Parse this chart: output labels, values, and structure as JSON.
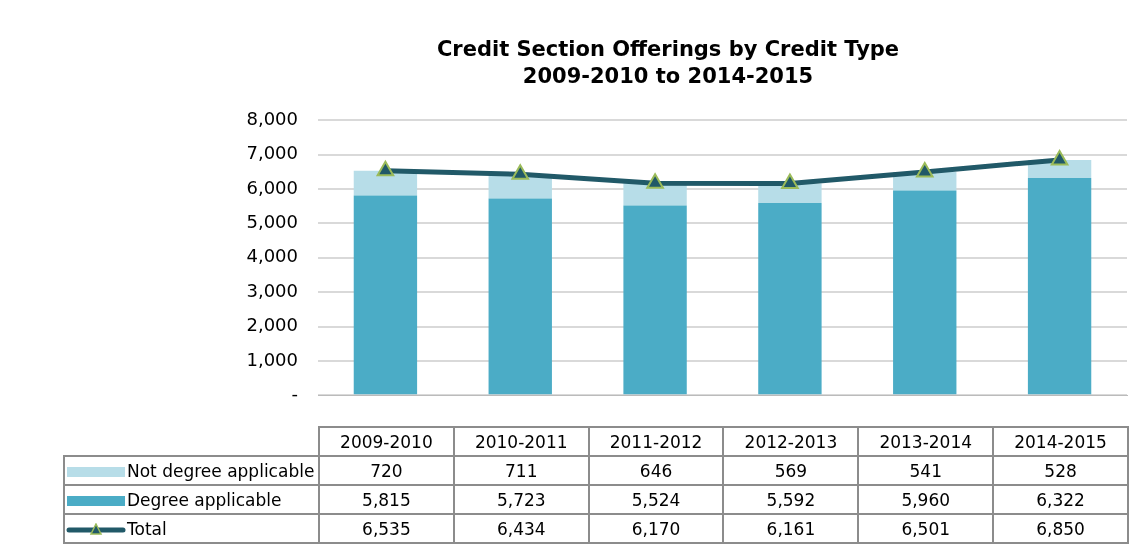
{
  "chart_data": {
    "type": "bar",
    "title": "Credit Section Offerings by Credit Type",
    "subtitle": "2009-2010 to 2014-2015",
    "categories": [
      "2009-2010",
      "2010-2011",
      "2011-2012",
      "2012-2013",
      "2013-2014",
      "2014-2015"
    ],
    "series": [
      {
        "name": "Degree applicable",
        "color": "#4bacc6",
        "values": [
          5815,
          5723,
          5524,
          5592,
          5960,
          6322
        ],
        "value_labels": [
          "5,815",
          "5,723",
          "5,524",
          "5,592",
          "5,960",
          "6,322"
        ]
      },
      {
        "name": "Not degree applicable",
        "color": "#b7dde8",
        "values": [
          720,
          711,
          646,
          569,
          541,
          528
        ],
        "value_labels": [
          "720",
          "711",
          "646",
          "569",
          "541",
          "528"
        ]
      },
      {
        "name": "Total",
        "type": "line",
        "color": "#215968",
        "marker": "triangle",
        "values": [
          6535,
          6434,
          6170,
          6161,
          6501,
          6850
        ],
        "value_labels": [
          "6,535",
          "6,434",
          "6,170",
          "6,161",
          "6,501",
          "6,850"
        ]
      }
    ],
    "stacked": true,
    "ylim": [
      0,
      8000
    ],
    "yticks": [
      {
        "value": 0,
        "label": "-"
      },
      {
        "value": 1000,
        "label": "1,000"
      },
      {
        "value": 2000,
        "label": "2,000"
      },
      {
        "value": 3000,
        "label": "3,000"
      },
      {
        "value": 4000,
        "label": "4,000"
      },
      {
        "value": 5000,
        "label": "5,000"
      },
      {
        "value": 6000,
        "label": "6,000"
      },
      {
        "value": 7000,
        "label": "7,000"
      },
      {
        "value": 8000,
        "label": "8,000"
      }
    ],
    "grid": "y",
    "legend": "bottom"
  }
}
